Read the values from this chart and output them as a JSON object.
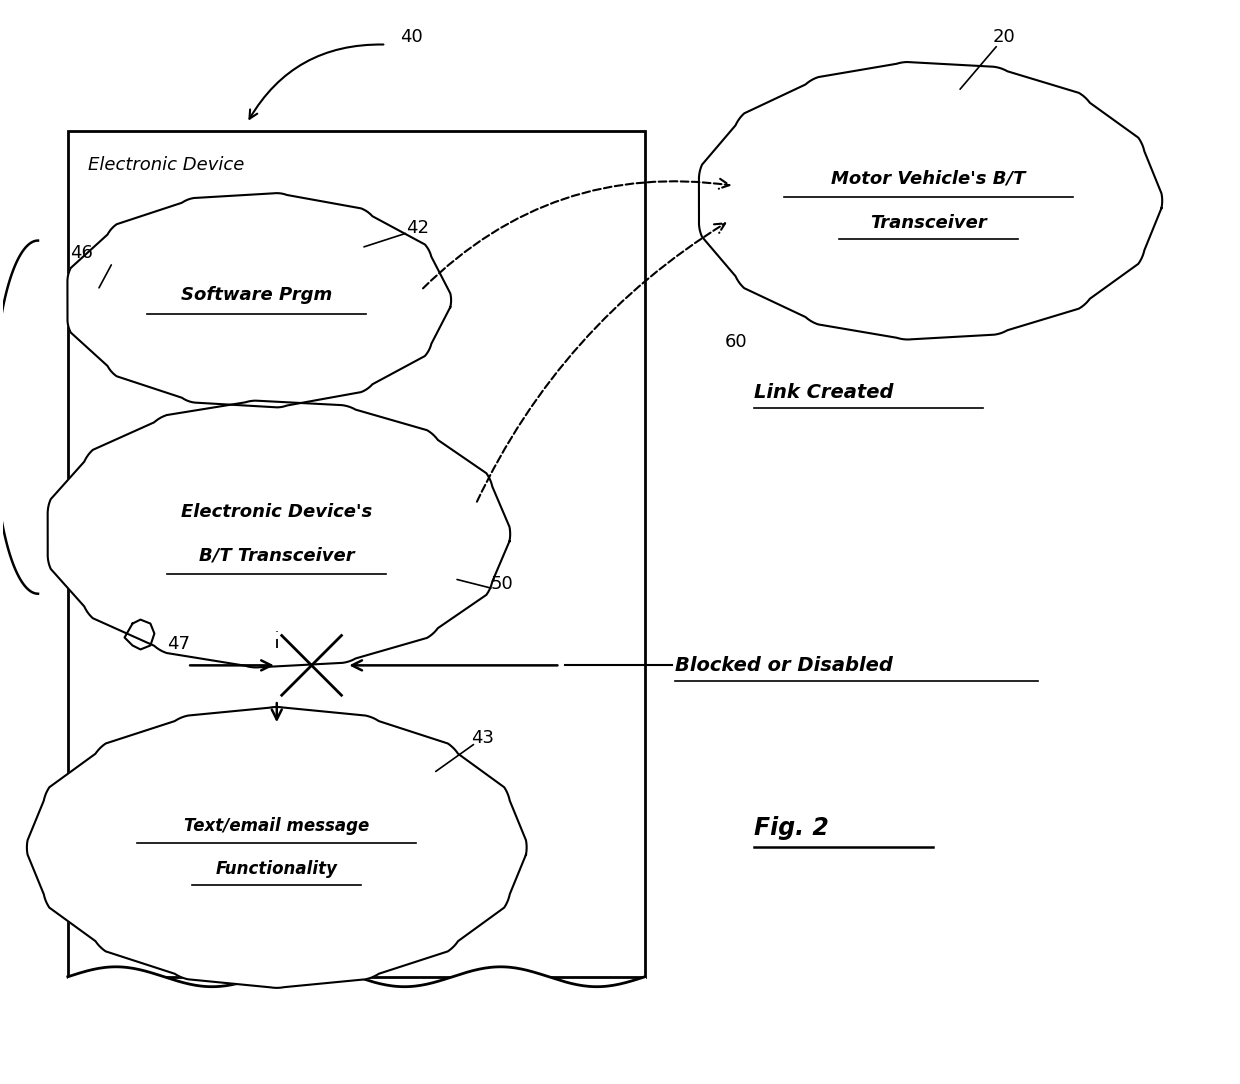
{
  "bg_color": "#ffffff",
  "fig_width": 12.4,
  "fig_height": 10.84,
  "title": "Fig. 2",
  "labels": {
    "label_40": "40",
    "label_20": "20",
    "label_42": "42",
    "label_46": "46",
    "label_50": "50",
    "label_47": "47",
    "label_43": "43",
    "label_60": "60",
    "link_created": "Link Created",
    "blocked": "Blocked or Disabled",
    "electronic_device": "Electronic Device",
    "software_prgm": "Software Prgm",
    "ed_bt_line1": "Electronic Device's",
    "ed_bt_line2": "B/T Transceiver",
    "mv_bt_line1": "Motor Vehicle's B/T",
    "mv_bt_line2": "Transceiver",
    "text_email_line1": "Text/email message",
    "text_email_line2": "Functionality"
  }
}
